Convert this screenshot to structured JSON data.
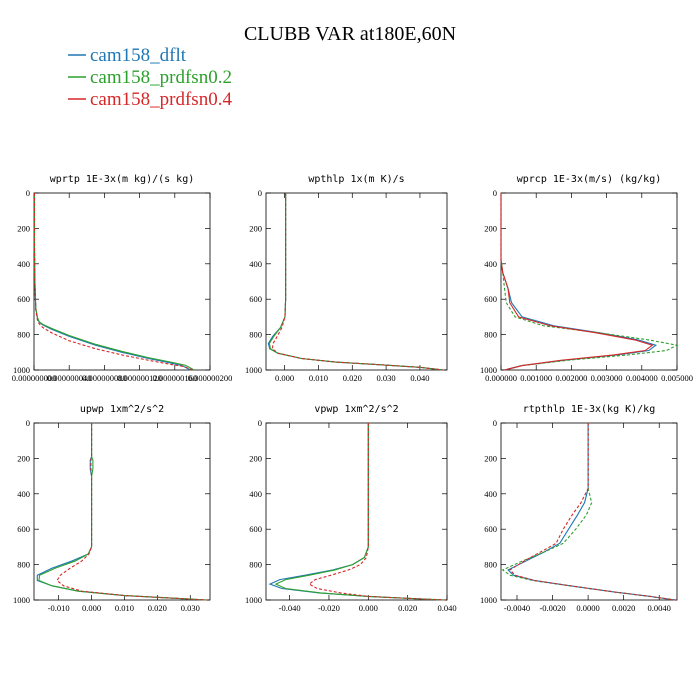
{
  "figure": {
    "title": "CLUBB VAR at180E,60N",
    "legend": [
      {
        "label": "cam158_dflt",
        "color": "#1f77b4"
      },
      {
        "label": "cam158_prdfsn0.2",
        "color": "#2ca02c"
      },
      {
        "label": "cam158_prdfsn0.4",
        "color": "#d62728"
      }
    ]
  },
  "chart_data": [
    {
      "type": "line",
      "title": "wprtp  1E-3x(m kg)/(s kg)",
      "xlim": [
        0,
        2e-07
      ],
      "ylim": [
        1000,
        0
      ],
      "xticks": [
        "0.000000000",
        "0.000000040",
        "0.000000080",
        "0.000000120",
        "0.000000160",
        "0.000000200"
      ],
      "xtick_values": [
        0,
        4e-08,
        8e-08,
        1.2e-07,
        1.6e-07,
        2e-07
      ],
      "yticks": [
        "0",
        "200",
        "400",
        "600",
        "800",
        "1000"
      ],
      "ytick_values": [
        0,
        200,
        400,
        600,
        800,
        1000
      ],
      "series": [
        {
          "name": "cam158_dflt",
          "color": "#1f77b4",
          "dash": "solid",
          "x": [
            5e-10,
            5e-10,
            1e-09,
            2e-09,
            4e-09,
            6e-09,
            1e-08,
            2e-08,
            4e-08,
            7e-08,
            1e-07,
            1.3e-07,
            1.55e-07,
            1.68e-07,
            1.78e-07
          ],
          "y": [
            0,
            300,
            500,
            650,
            710,
            730,
            745,
            770,
            810,
            860,
            900,
            935,
            960,
            975,
            1000
          ]
        },
        {
          "name": "cam158_prdfsn0.2",
          "color": "#2ca02c",
          "dash": "solid",
          "x": [
            5e-10,
            5e-10,
            1e-09,
            2e-09,
            4e-09,
            6e-09,
            1e-08,
            2e-08,
            4e-08,
            7e-08,
            1e-07,
            1.3e-07,
            1.57e-07,
            1.72e-07,
            1.82e-07
          ],
          "y": [
            0,
            300,
            500,
            650,
            705,
            728,
            742,
            765,
            805,
            855,
            895,
            930,
            957,
            973,
            1000
          ]
        },
        {
          "name": "cam158_prdfsn0.4",
          "color": "#d62728",
          "dash": "dashed",
          "x": [
            5e-10,
            5e-10,
            1e-09,
            2e-09,
            4e-09,
            6e-09,
            1e-08,
            2e-08,
            4e-08,
            7e-08,
            1e-07,
            1.3e-07,
            1.55e-07,
            1.7e-07,
            1.8e-07
          ],
          "y": [
            0,
            300,
            500,
            660,
            720,
            740,
            760,
            790,
            835,
            880,
            915,
            945,
            968,
            980,
            1000
          ]
        }
      ]
    },
    {
      "type": "line",
      "title": "wpthlp  1x(m K)/s",
      "xlim": [
        -0.0055,
        0.048
      ],
      "ylim": [
        1000,
        0
      ],
      "xticks": [
        "0.000",
        "0.010",
        "0.020",
        "0.030",
        "0.040"
      ],
      "xtick_values": [
        0,
        0.01,
        0.02,
        0.03,
        0.04
      ],
      "yticks": [
        "0",
        "200",
        "400",
        "600",
        "800",
        "1000"
      ],
      "ytick_values": [
        0,
        200,
        400,
        600,
        800,
        1000
      ],
      "series": [
        {
          "name": "cam158_dflt",
          "color": "#1f77b4",
          "dash": "solid",
          "x": [
            0.0003,
            0.0003,
            0.0003,
            0.0001,
            -0.0012,
            -0.0035,
            -0.0048,
            -0.0044,
            -0.002,
            0.005,
            0.015,
            0.028,
            0.04,
            0.047
          ],
          "y": [
            0,
            300,
            600,
            700,
            760,
            810,
            850,
            880,
            905,
            935,
            955,
            970,
            985,
            1000
          ]
        },
        {
          "name": "cam158_prdfsn0.2",
          "color": "#2ca02c",
          "dash": "solid",
          "x": [
            0.0003,
            0.0003,
            0.0003,
            0.0001,
            -0.0012,
            -0.0032,
            -0.0045,
            -0.0042,
            -0.002,
            0.005,
            0.015,
            0.028,
            0.04,
            0.047
          ],
          "y": [
            0,
            300,
            600,
            700,
            760,
            810,
            850,
            880,
            905,
            935,
            955,
            970,
            985,
            1000
          ]
        },
        {
          "name": "cam158_prdfsn0.4",
          "color": "#d62728",
          "dash": "dashed",
          "x": [
            0.0003,
            0.0003,
            0.0003,
            0.0001,
            -0.0008,
            -0.0022,
            -0.0034,
            -0.0036,
            -0.002,
            0.005,
            0.015,
            0.028,
            0.04,
            0.047
          ],
          "y": [
            0,
            300,
            600,
            700,
            760,
            810,
            850,
            880,
            905,
            935,
            955,
            970,
            985,
            1000
          ]
        }
      ]
    },
    {
      "type": "line",
      "title": "wprcp  1E-3x(m/s) (kg/kg)",
      "xlim": [
        0,
        0.005
      ],
      "ylim": [
        1000,
        0
      ],
      "xticks": [
        "0.000000",
        "0.001000",
        "0.002000",
        "0.003000",
        "0.004000",
        "0.005000"
      ],
      "xtick_values": [
        0,
        0.001,
        0.002,
        0.003,
        0.004,
        0.005
      ],
      "yticks": [
        "0",
        "200",
        "400",
        "600",
        "800",
        "1000"
      ],
      "ytick_values": [
        0,
        200,
        400,
        600,
        800,
        1000
      ],
      "series": [
        {
          "name": "cam158_dflt",
          "color": "#1f77b4",
          "dash": "solid",
          "x": [
            0,
            0,
            5e-05,
            0.0002,
            0.0003,
            0.0006,
            0.0015,
            0.0028,
            0.0039,
            0.0044,
            0.0042,
            0.0033,
            0.0018,
            0.0006,
            0.0001
          ],
          "y": [
            0,
            380,
            450,
            540,
            620,
            700,
            750,
            790,
            830,
            860,
            890,
            915,
            945,
            975,
            1000
          ]
        },
        {
          "name": "cam158_prdfsn0.2",
          "color": "#2ca02c",
          "dash": "dashed",
          "x": [
            0,
            0,
            5e-05,
            0.0001,
            0.00015,
            0.0004,
            0.0012,
            0.0028,
            0.0042,
            0.005,
            0.0047,
            0.0036,
            0.0019,
            0.0006,
            0.0001
          ],
          "y": [
            0,
            380,
            450,
            540,
            620,
            700,
            750,
            790,
            830,
            860,
            890,
            915,
            945,
            975,
            1000
          ]
        },
        {
          "name": "cam158_prdfsn0.4",
          "color": "#d62728",
          "dash": "solid",
          "x": [
            0,
            0,
            5e-05,
            0.0002,
            0.00025,
            0.0005,
            0.0014,
            0.0027,
            0.0038,
            0.0043,
            0.0041,
            0.0032,
            0.0017,
            0.0006,
            0.0001
          ],
          "y": [
            0,
            380,
            450,
            540,
            620,
            700,
            750,
            790,
            830,
            860,
            890,
            915,
            945,
            975,
            1000
          ]
        }
      ]
    },
    {
      "type": "line",
      "title": "upwp  1xm^2/s^2",
      "xlim": [
        -0.0175,
        0.036
      ],
      "ylim": [
        1000,
        0
      ],
      "xticks": [
        "-0.010",
        "0.000",
        "0.010",
        "0.020",
        "0.030"
      ],
      "xtick_values": [
        -0.01,
        0,
        0.01,
        0.02,
        0.03
      ],
      "yticks": [
        "0",
        "200",
        "400",
        "600",
        "800",
        "1000"
      ],
      "ytick_values": [
        0,
        200,
        400,
        600,
        800,
        1000
      ],
      "series": [
        {
          "name": "cam158_dflt",
          "color": "#1f77b4",
          "dash": "solid",
          "x": [
            0,
            0,
            -0.0004,
            -0.0004,
            0,
            0,
            -0.001,
            -0.006,
            -0.012,
            -0.0165,
            -0.0165,
            -0.012,
            -0.004,
            0.01,
            0.025,
            0.035
          ],
          "y": [
            0,
            190,
            210,
            260,
            300,
            700,
            740,
            780,
            820,
            860,
            890,
            920,
            950,
            975,
            990,
            1000
          ]
        },
        {
          "name": "cam158_prdfsn0.2",
          "color": "#2ca02c",
          "dash": "solid",
          "x": [
            0,
            0,
            0.0004,
            0.0004,
            0,
            0,
            -0.001,
            -0.005,
            -0.011,
            -0.0158,
            -0.016,
            -0.012,
            -0.004,
            0.01,
            0.025,
            0.035
          ],
          "y": [
            0,
            190,
            210,
            260,
            300,
            700,
            740,
            780,
            820,
            860,
            890,
            920,
            950,
            975,
            990,
            1000
          ]
        },
        {
          "name": "cam158_prdfsn0.4",
          "color": "#d62728",
          "dash": "dashed",
          "x": [
            0,
            0,
            -0.0002,
            -0.0002,
            0,
            0,
            -0.0008,
            -0.003,
            -0.0065,
            -0.0095,
            -0.0105,
            -0.0085,
            -0.003,
            0.01,
            0.025,
            0.035
          ],
          "y": [
            0,
            190,
            210,
            260,
            300,
            700,
            740,
            780,
            820,
            860,
            890,
            920,
            950,
            975,
            990,
            1000
          ]
        }
      ]
    },
    {
      "type": "line",
      "title": "vpwp  1xm^2/s^2",
      "xlim": [
        -0.052,
        0.04
      ],
      "ylim": [
        1000,
        0
      ],
      "xticks": [
        "-0.040",
        "-0.020",
        "0.000",
        "0.020",
        "0.040"
      ],
      "xtick_values": [
        -0.04,
        -0.02,
        0,
        0.02,
        0.04
      ],
      "yticks": [
        "0",
        "200",
        "400",
        "600",
        "800",
        "1000"
      ],
      "ytick_values": [
        0,
        200,
        400,
        600,
        800,
        1000
      ],
      "series": [
        {
          "name": "cam158_dflt",
          "color": "#1f77b4",
          "dash": "solid",
          "x": [
            0,
            0,
            -0.002,
            -0.008,
            -0.018,
            -0.032,
            -0.045,
            -0.05,
            -0.044,
            -0.025,
            0,
            0.025,
            0.039
          ],
          "y": [
            0,
            700,
            760,
            800,
            830,
            860,
            885,
            910,
            935,
            960,
            980,
            993,
            1000
          ]
        },
        {
          "name": "cam158_prdfsn0.2",
          "color": "#2ca02c",
          "dash": "solid",
          "x": [
            0,
            0,
            -0.002,
            -0.008,
            -0.017,
            -0.03,
            -0.042,
            -0.047,
            -0.042,
            -0.024,
            0,
            0.025,
            0.039
          ],
          "y": [
            0,
            700,
            760,
            800,
            830,
            860,
            885,
            910,
            935,
            960,
            980,
            993,
            1000
          ]
        },
        {
          "name": "cam158_prdfsn0.4",
          "color": "#d62728",
          "dash": "dashed",
          "x": [
            0,
            0,
            -0.001,
            -0.004,
            -0.01,
            -0.019,
            -0.027,
            -0.03,
            -0.026,
            -0.014,
            0,
            0.025,
            0.039
          ],
          "y": [
            0,
            700,
            760,
            800,
            830,
            860,
            885,
            910,
            935,
            960,
            980,
            993,
            1000
          ]
        }
      ]
    },
    {
      "type": "line",
      "title": "rtpthlp  1E-3x(kg K)/kg",
      "xlim": [
        -0.0049,
        0.005
      ],
      "ylim": [
        1000,
        0
      ],
      "xticks": [
        "-0.0040",
        "-0.0020",
        "0.0000",
        "0.0020",
        "0.0040"
      ],
      "xtick_values": [
        -0.004,
        -0.002,
        0,
        0.002,
        0.004
      ],
      "yticks": [
        "0",
        "200",
        "400",
        "600",
        "800",
        "1000"
      ],
      "ytick_values": [
        0,
        200,
        400,
        600,
        800,
        1000
      ],
      "series": [
        {
          "name": "cam158_dflt",
          "color": "#1f77b4",
          "dash": "solid",
          "x": [
            0,
            0,
            -0.0002,
            -0.0006,
            -0.0011,
            -0.0016,
            -0.0025,
            -0.0035,
            -0.0045,
            -0.0042,
            -0.003,
            -0.001,
            0.0015,
            0.0035,
            0.0049
          ],
          "y": [
            0,
            370,
            450,
            520,
            600,
            680,
            730,
            780,
            830,
            860,
            890,
            920,
            955,
            980,
            1000
          ]
        },
        {
          "name": "cam158_prdfsn0.2",
          "color": "#2ca02c",
          "dash": "dashed",
          "x": [
            0,
            0,
            0.0002,
            -0.0001,
            -0.0007,
            -0.0014,
            -0.0025,
            -0.0037,
            -0.0048,
            -0.0044,
            -0.0031,
            -0.001,
            0.0015,
            0.0035,
            0.0049
          ],
          "y": [
            0,
            370,
            450,
            520,
            600,
            680,
            730,
            780,
            830,
            860,
            890,
            920,
            955,
            980,
            1000
          ]
        },
        {
          "name": "cam158_prdfsn0.4",
          "color": "#d62728",
          "dash": "dashed",
          "x": [
            0,
            0,
            -0.0004,
            -0.0009,
            -0.0014,
            -0.0018,
            -0.0027,
            -0.0036,
            -0.0044,
            -0.0041,
            -0.003,
            -0.001,
            0.0015,
            0.0035,
            0.0049
          ],
          "y": [
            0,
            370,
            450,
            520,
            600,
            680,
            730,
            780,
            830,
            860,
            890,
            920,
            955,
            980,
            1000
          ]
        }
      ]
    }
  ]
}
